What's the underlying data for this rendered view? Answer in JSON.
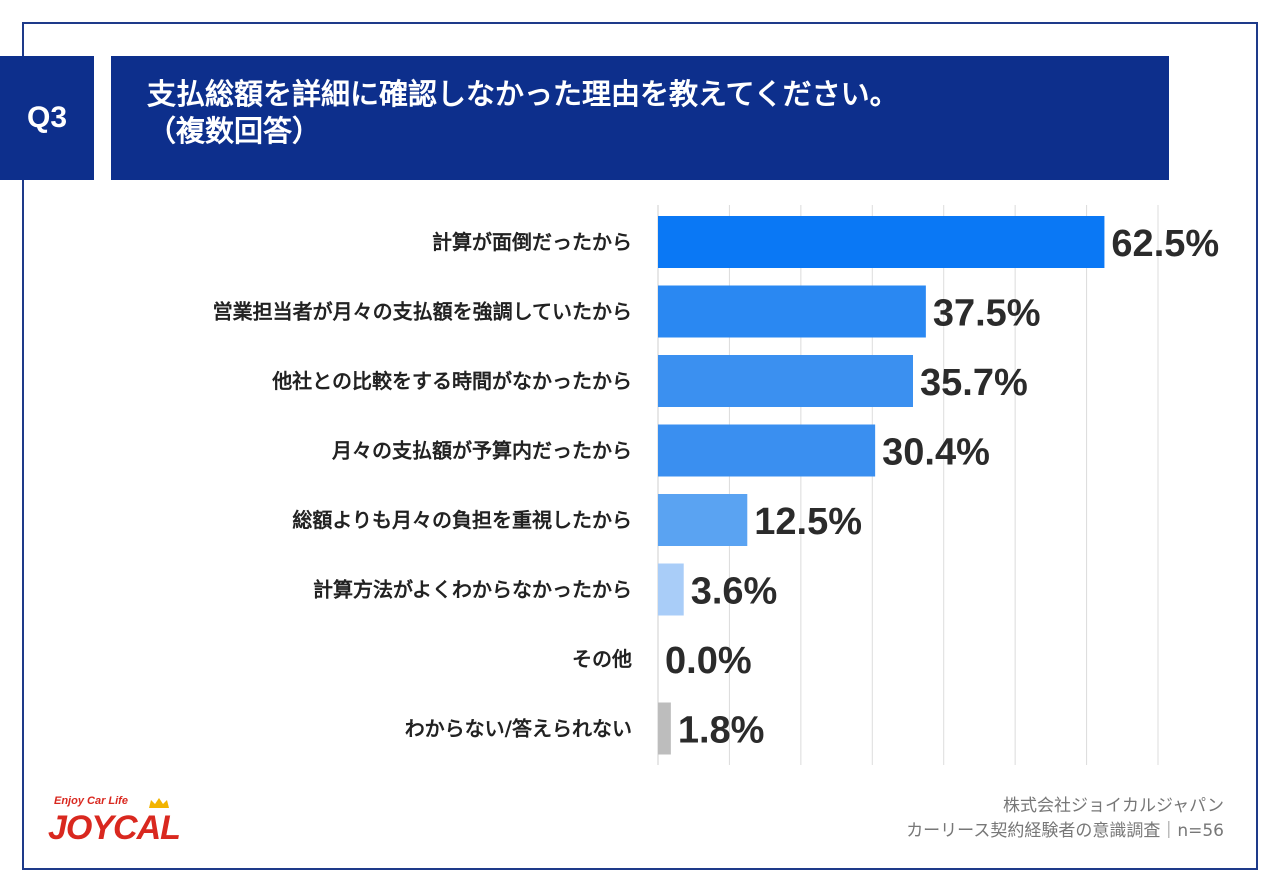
{
  "header": {
    "question_no": "Q3",
    "title_line1": "支払総額を詳細に確認しなかった理由を教えてください。",
    "title_line2": "（複数回答）"
  },
  "colors": {
    "header_bg": "#0d2f8c",
    "bar_gradient": [
      "#0a78f5",
      "#2a88f2",
      "#3b90f0",
      "#3a8ff0",
      "#5aa3f2",
      "#a9cdf8",
      "#7fb4f5",
      "#bdbdbd"
    ]
  },
  "chart_data": {
    "type": "bar",
    "orientation": "horizontal",
    "categories": [
      "計算が面倒だったから",
      "営業担当者が月々の支払額を強調していたから",
      "他社との比較をする時間がなかったから",
      "月々の支払額が予算内だったから",
      "総額よりも月々の負担を重視したから",
      "計算方法がよくわからなかったから",
      "その他",
      "わからない/答えられない"
    ],
    "values": [
      62.5,
      37.5,
      35.7,
      30.4,
      12.5,
      3.6,
      0.0,
      1.8
    ],
    "value_labels": [
      "62.5%",
      "37.5%",
      "35.7%",
      "30.4%",
      "12.5%",
      "3.6%",
      "0.0%",
      "1.8%"
    ],
    "xlim": [
      0,
      70
    ],
    "grid": true
  },
  "footer": {
    "logo_tagline": "Enjoy Car Life",
    "logo_text": "JOYCAL",
    "company": "株式会社ジョイカルジャパン",
    "survey": "カーリース契約経験者の意識調査｜n=56"
  }
}
